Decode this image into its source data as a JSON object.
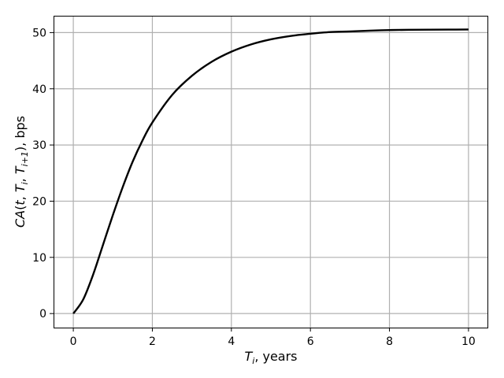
{
  "chart_data": {
    "type": "line",
    "title": "",
    "xlabel_main": "T",
    "xlabel_sub": "i",
    "xlabel_rest": ", years",
    "ylabel_parts": [
      {
        "t": "CA",
        "italic": true
      },
      {
        "t": "(",
        "italic": false
      },
      {
        "t": "t",
        "italic": true
      },
      {
        "t": ", ",
        "italic": false
      },
      {
        "t": "T",
        "italic": true
      },
      {
        "t": "i",
        "italic": true,
        "sub": true
      },
      {
        "t": ", ",
        "italic": false
      },
      {
        "t": "T",
        "italic": true
      },
      {
        "t": "i+1",
        "italic": true,
        "sub": true
      },
      {
        "t": "), bps",
        "italic": false
      }
    ],
    "xlim": [
      -0.5,
      10.5
    ],
    "ylim": [
      -2.5,
      53.0
    ],
    "xticks": [
      0,
      2,
      4,
      6,
      8,
      10
    ],
    "xtick_labels": [
      "0",
      "2",
      "4",
      "6",
      "8",
      "10"
    ],
    "yticks": [
      0,
      10,
      20,
      30,
      40,
      50
    ],
    "ytick_labels": [
      "0",
      "10",
      "20",
      "30",
      "40",
      "50"
    ],
    "grid": true,
    "series": [
      {
        "color": "#000000",
        "x": [
          0,
          0.25,
          0.5,
          0.75,
          1.0,
          1.25,
          1.5,
          1.75,
          2.0,
          2.5,
          3.0,
          3.5,
          4.0,
          4.5,
          5.0,
          5.5,
          6.0,
          6.5,
          7.0,
          7.5,
          8.0,
          8.5,
          9.0,
          9.5,
          10.0
        ],
        "y": [
          0,
          2.5,
          6.9,
          12.2,
          17.5,
          22.5,
          27.0,
          30.8,
          34.0,
          38.9,
          42.3,
          44.8,
          46.6,
          47.9,
          48.8,
          49.4,
          49.8,
          50.1,
          50.2,
          50.35,
          50.45,
          50.5,
          50.52,
          50.54,
          50.55
        ]
      }
    ]
  }
}
